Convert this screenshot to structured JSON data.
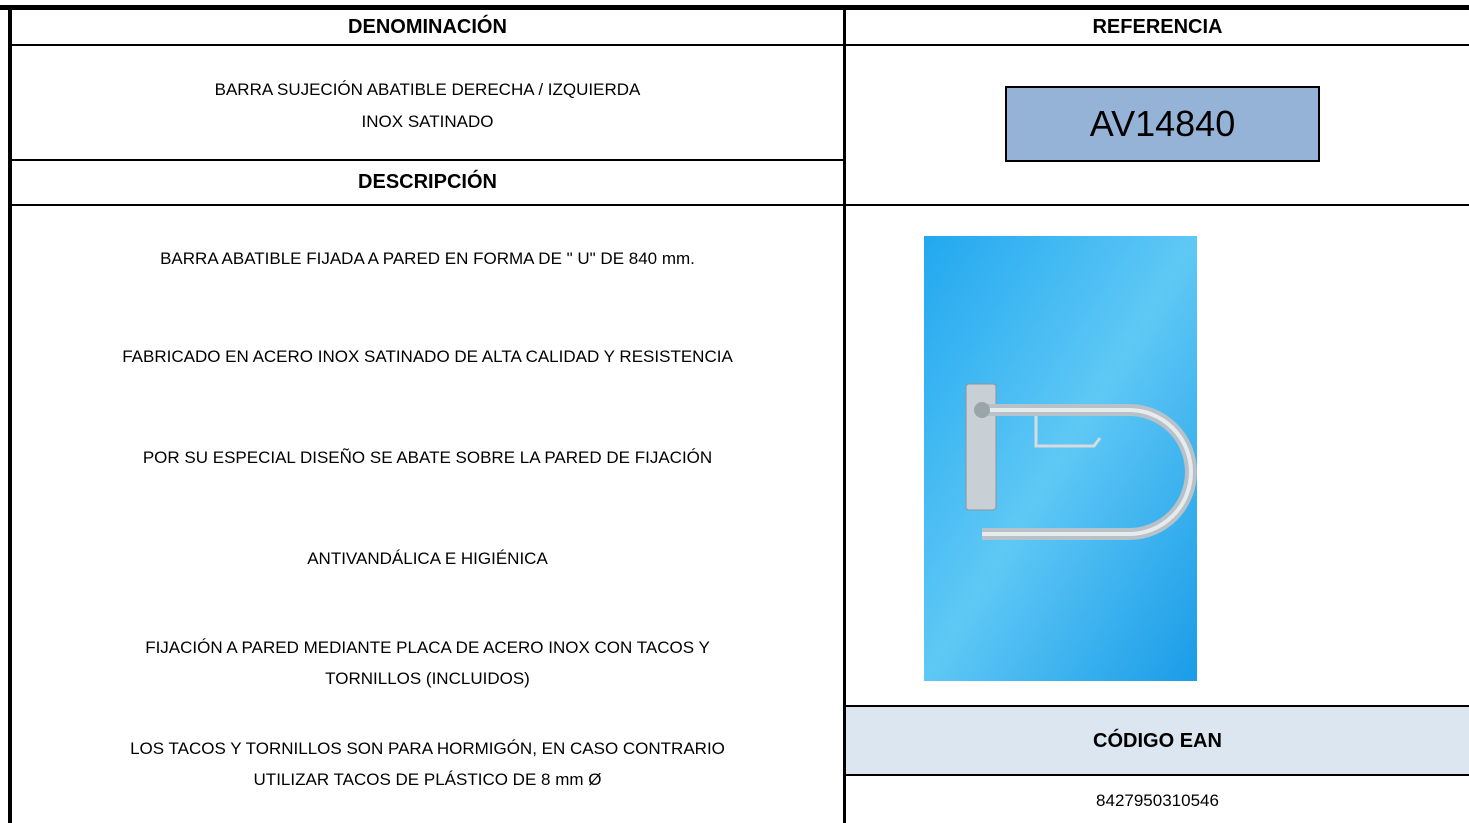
{
  "header": {
    "denomination_label": "DENOMINACIÓN",
    "reference_label": "REFERENCIA"
  },
  "product": {
    "name_lines": [
      "BARRA SUJECIÓN ABATIBLE DERECHA /  IZQUIERDA",
      "INOX SATINADO"
    ],
    "reference": "AV14840"
  },
  "description": {
    "heading": "DESCRIPCIÓN",
    "items": [
      [
        "BARRA ABATIBLE FIJADA A PARED EN FORMA DE \" U\"  DE 840 mm."
      ],
      [
        "FABRICADO EN ACERO INOX SATINADO DE ALTA CALIDAD Y RESISTENCIA"
      ],
      [
        "POR SU ESPECIAL DISEÑO SE ABATE SOBRE LA PARED DE FIJACIÓN"
      ],
      [
        "ANTIVANDÁLICA E HIGIÉNICA"
      ],
      [
        "FIJACIÓN A PARED MEDIANTE PLACA DE ACERO INOX CON TACOS Y",
        "TORNILLOS (INCLUIDOS)"
      ],
      [
        "LOS TACOS Y TORNILLOS SON PARA HORMIGÓN, EN CASO CONTRARIO",
        "UTILIZAR TACOS DE PLÁSTICO DE 8 mm Ø"
      ]
    ]
  },
  "ean": {
    "heading": "CÓDIGO EAN",
    "code": "8427950310546"
  }
}
